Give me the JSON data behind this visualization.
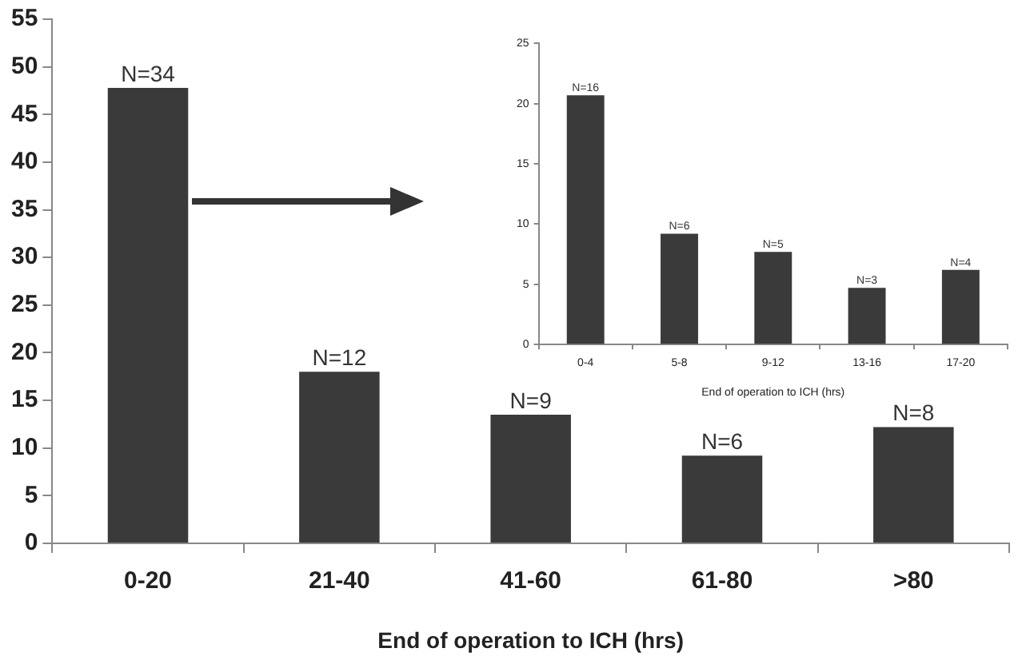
{
  "chart_data": [
    {
      "type": "bar",
      "xlabel": "End of operation to ICH (hrs)",
      "categories": [
        "0-20",
        "21-40",
        "41-60",
        "61-80",
        ">80"
      ],
      "values": [
        47.8,
        18,
        13.5,
        9.2,
        12.2
      ],
      "color": "#3a3a3a",
      "ylim": [
        0,
        55
      ],
      "yticks": [
        0,
        5,
        10,
        15,
        20,
        25,
        30,
        35,
        40,
        45,
        50,
        55
      ],
      "grid": false,
      "legend": false,
      "annotations": [
        {
          "text": "N=34",
          "x": "0-20",
          "y": 47.8
        },
        {
          "text": "N=12",
          "x": "21-40",
          "y": 18
        },
        {
          "text": "N=9",
          "x": "41-60",
          "y": 13.5
        },
        {
          "text": "N=6",
          "x": "61-80",
          "y": 9.2
        },
        {
          "text": "N=8",
          "x": ">80",
          "y": 12.2
        }
      ]
    },
    {
      "type": "bar",
      "xlabel": "End of operation to ICH (hrs)",
      "categories": [
        "0-4",
        "5-8",
        "9-12",
        "13-16",
        "17-20"
      ],
      "values": [
        20.7,
        9.2,
        7.7,
        4.7,
        6.2
      ],
      "color": "#3a3a3a",
      "ylim": [
        0,
        25
      ],
      "yticks": [
        0,
        5,
        10,
        15,
        20,
        25
      ],
      "grid": false,
      "legend": false,
      "annotations": [
        {
          "text": "N=16",
          "x": "0-4",
          "y": 20.7
        },
        {
          "text": "N=6",
          "x": "5-8",
          "y": 9.2
        },
        {
          "text": "N=5",
          "x": "9-12",
          "y": 7.7
        },
        {
          "text": "N=3",
          "x": "13-16",
          "y": 4.7
        },
        {
          "text": "N=4",
          "x": "17-20",
          "y": 6.2
        }
      ]
    }
  ]
}
